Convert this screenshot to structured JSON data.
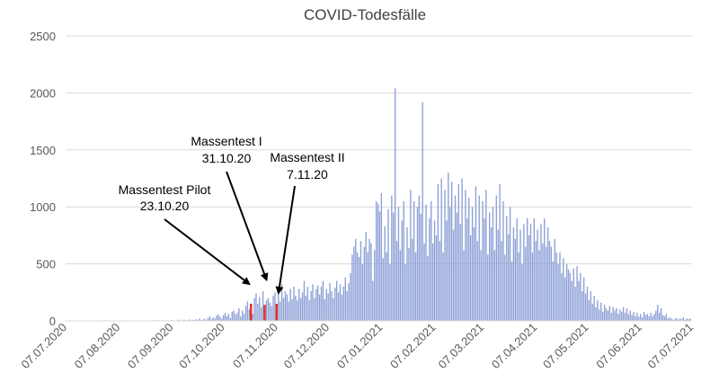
{
  "chart_data": {
    "type": "bar",
    "title": "COVID-Todesfälle",
    "xlabel": "",
    "ylabel": "",
    "ylim": [
      0,
      2500
    ],
    "grid": true,
    "legend": "none",
    "yticks": [
      "0",
      "500",
      "1000",
      "1500",
      "2000",
      "2500"
    ],
    "xtick_labels": [
      "07.07.2020",
      "07.08.2020",
      "07.09.2020",
      "07.10.2020",
      "07.11.2020",
      "07.12.2020",
      "07.01.2021",
      "07.02.2021",
      "07.03.2021",
      "07.04.2021",
      "07.05.2021",
      "07.06.2021",
      "07.07.2021"
    ],
    "x_start": "2020-07-07",
    "x_end": "2021-07-07",
    "colors": {
      "bars": "#8c9fd6",
      "highlight": "#e8302a",
      "grid": "#d9d9d9",
      "text": "#595959",
      "title": "#404040",
      "arrow": "#000000"
    },
    "series": [
      {
        "name": "COVID-Todesfälle",
        "start_date": "2020-07-07",
        "values": [
          2,
          3,
          2,
          4,
          2,
          3,
          2,
          2,
          3,
          2,
          4,
          2,
          3,
          2,
          2,
          3,
          2,
          2,
          3,
          5,
          2,
          3,
          2,
          2,
          4,
          3,
          2,
          3,
          2,
          2,
          3,
          2,
          4,
          5,
          2,
          3,
          2,
          2,
          3,
          4,
          2,
          3,
          2,
          4,
          3,
          2,
          2,
          3,
          4,
          2,
          3,
          6,
          3,
          2,
          4,
          3,
          2,
          5,
          3,
          4,
          2,
          3,
          8,
          4,
          3,
          5,
          10,
          4,
          6,
          8,
          5,
          3,
          12,
          6,
          9,
          5,
          14,
          8,
          20,
          6,
          12,
          18,
          9,
          25,
          40,
          15,
          30,
          20,
          45,
          55,
          35,
          20,
          50,
          70,
          40,
          60,
          25,
          80,
          90,
          55,
          70,
          110,
          40,
          90,
          60,
          130,
          170,
          100,
          150,
          60,
          200,
          240,
          150,
          210,
          120,
          260,
          140,
          180,
          200,
          160,
          130,
          220,
          250,
          150,
          280,
          170,
          320,
          200,
          260,
          230,
          170,
          280,
          190,
          300,
          220,
          180,
          280,
          200,
          250,
          350,
          220,
          300,
          180,
          260,
          320,
          200,
          280,
          310,
          230,
          300,
          350,
          190,
          280,
          240,
          330,
          260,
          200,
          290,
          350,
          250,
          320,
          230,
          300,
          380,
          260,
          330,
          420,
          580,
          650,
          720,
          600,
          560,
          700,
          500,
          650,
          780,
          600,
          720,
          680,
          350,
          620,
          1050,
          1030,
          960,
          1120,
          550,
          830,
          600,
          980,
          500,
          1100,
          950,
          2040,
          700,
          1000,
          620,
          880,
          1050,
          500,
          820,
          640,
          1150,
          720,
          1050,
          600,
          1000,
          1100,
          940,
          1920,
          680,
          1020,
          570,
          900,
          1050,
          680,
          880,
          750,
          1200,
          700,
          1250,
          600,
          1150,
          880,
          1300,
          1000,
          1220,
          800,
          1100,
          950,
          1200,
          850,
          1250,
          620,
          1150,
          900,
          1080,
          750,
          1000,
          820,
          1180,
          700,
          1100,
          620,
          1050,
          900,
          1150,
          580,
          950,
          820,
          1000,
          620,
          1100,
          800,
          1200,
          700,
          1050,
          580,
          920,
          760,
          1000,
          520,
          820,
          720,
          900,
          600,
          800,
          500,
          850,
          650,
          900,
          750,
          850,
          600,
          900,
          700,
          800,
          620,
          850,
          680,
          900,
          650,
          820,
          700,
          650,
          520,
          720,
          600,
          500,
          600,
          420,
          550,
          380,
          500,
          450,
          420,
          350,
          460,
          300,
          480,
          350,
          420,
          260,
          380,
          240,
          300,
          180,
          260,
          150,
          220,
          120,
          180,
          100,
          160,
          80,
          140,
          110,
          90,
          130,
          70,
          120,
          90,
          110,
          60,
          100,
          80,
          120,
          70,
          110,
          60,
          90,
          50,
          80,
          40,
          70,
          35,
          60,
          30,
          80,
          50,
          60,
          40,
          70,
          40,
          60,
          90,
          140,
          70,
          110,
          50,
          40,
          60,
          20,
          30,
          20,
          10,
          15,
          25,
          10,
          20,
          15,
          30,
          10,
          20,
          15,
          20
        ]
      }
    ],
    "highlight_dates": [
      "2020-10-23",
      "2020-10-31",
      "2020-11-07"
    ],
    "annotations": [
      {
        "label1": "Massentest Pilot",
        "label2": "23.10.20",
        "date": "2020-10-23"
      },
      {
        "label1": "Massentest I",
        "label2": "31.10.20",
        "date": "2020-10-31"
      },
      {
        "label1": "Massentest II",
        "label2": "7.11.20",
        "date": "2020-11-07"
      }
    ]
  }
}
